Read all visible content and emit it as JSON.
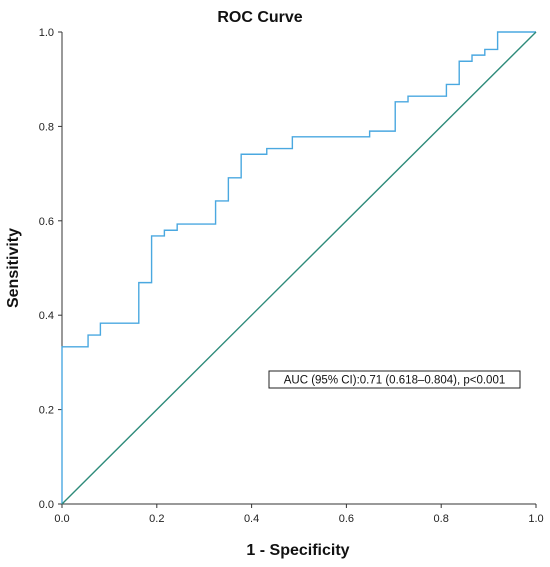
{
  "chart_data": {
    "type": "line",
    "title": "ROC Curve",
    "xlabel": "1 - Specificity",
    "ylabel": "Sensitivity",
    "xlim": [
      0.0,
      1.0
    ],
    "ylim": [
      0.0,
      1.0
    ],
    "xticks": [
      "0.0",
      "0.2",
      "0.4",
      "0.6",
      "0.8",
      "1.0"
    ],
    "yticks": [
      "0.0",
      "0.2",
      "0.4",
      "0.6",
      "0.8",
      "1.0"
    ],
    "grid": false,
    "annotation": "AUC (95% CI):0.71 (0.618–0.804), p<0.001",
    "colors": {
      "roc": "#4aa8e0",
      "reference": "#2e8b7a",
      "axis": "#333333"
    },
    "series": [
      {
        "role": "roc",
        "x": [
          0.0,
          0.0,
          0.055,
          0.055,
          0.081,
          0.081,
          0.162,
          0.162,
          0.189,
          0.189,
          0.216,
          0.216,
          0.243,
          0.243,
          0.324,
          0.324,
          0.351,
          0.351,
          0.378,
          0.378,
          0.432,
          0.432,
          0.486,
          0.486,
          0.649,
          0.649,
          0.703,
          0.703,
          0.73,
          0.73,
          0.811,
          0.811,
          0.838,
          0.838,
          0.865,
          0.865,
          0.892,
          0.892,
          0.919,
          0.919,
          1.0
        ],
        "y": [
          0.0,
          0.333,
          0.333,
          0.358,
          0.358,
          0.383,
          0.383,
          0.469,
          0.469,
          0.568,
          0.568,
          0.58,
          0.58,
          0.593,
          0.593,
          0.642,
          0.642,
          0.691,
          0.691,
          0.741,
          0.741,
          0.753,
          0.753,
          0.778,
          0.778,
          0.79,
          0.79,
          0.852,
          0.852,
          0.864,
          0.864,
          0.889,
          0.889,
          0.938,
          0.938,
          0.951,
          0.951,
          0.963,
          0.963,
          1.0,
          1.0
        ]
      },
      {
        "role": "reference",
        "x": [
          0.0,
          1.0
        ],
        "y": [
          0.0,
          1.0
        ]
      }
    ]
  }
}
